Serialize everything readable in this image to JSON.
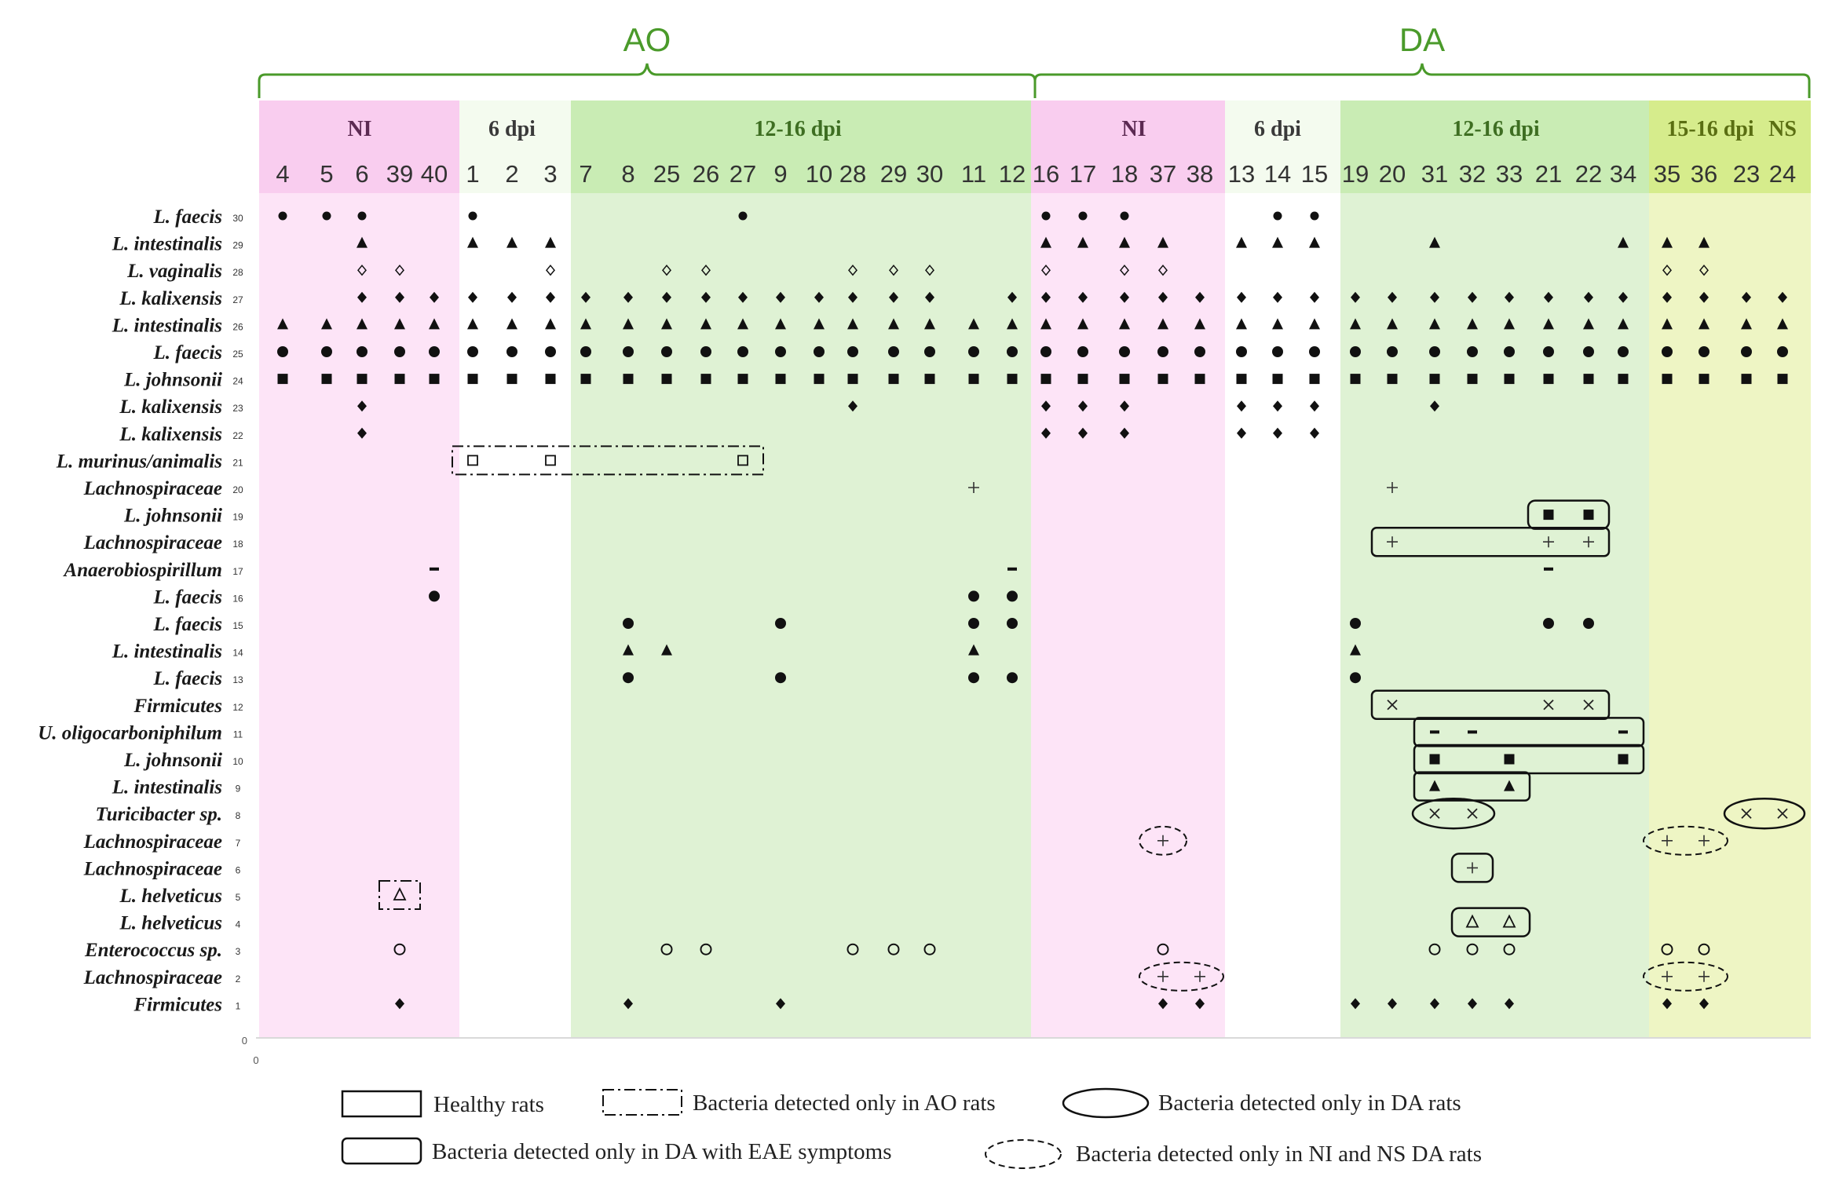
{
  "chart_data": {
    "type": "scatter",
    "groups": [
      {
        "label": "AO",
        "color": "#4a9a2a"
      },
      {
        "label": "DA",
        "color": "#4a9a2a"
      }
    ],
    "sections": [
      {
        "label": "NI",
        "fill": "#fde4f7",
        "text_color": "#5c2a52"
      },
      {
        "label": "6 dpi",
        "fill": "#ffffff",
        "text_color": "#3a3a3a"
      },
      {
        "label": "12-16 dpi",
        "fill": "#dff2d4",
        "text_color": "#3e6e22"
      },
      {
        "label": "NI",
        "fill": "#fde4f7",
        "text_color": "#5c2a52"
      },
      {
        "label": "6 dpi",
        "fill": "#ffffff",
        "text_color": "#3a3a3a"
      },
      {
        "label": "12-16 dpi",
        "fill": "#dff2d4",
        "text_color": "#3e6e22"
      },
      {
        "label": "15-16 dpi",
        "fill": "#eef5c4",
        "text_color": "#5a6e12"
      },
      {
        "label": "NS",
        "fill": "#eef5c4",
        "text_color": "#5a6e12"
      }
    ],
    "columns": [
      "4",
      "5",
      "6",
      "39",
      "40",
      "1",
      "2",
      "3",
      "7",
      "8",
      "25",
      "26",
      "27",
      "9",
      "10",
      "28",
      "29",
      "30",
      "11",
      "12",
      "16",
      "17",
      "18",
      "37",
      "38",
      "13",
      "14",
      "15",
      "19",
      "20",
      "31",
      "32",
      "33",
      "21",
      "22",
      "34",
      "35",
      "36",
      "23",
      "24"
    ],
    "rows": [
      {
        "num": "30",
        "name": "L. faecis"
      },
      {
        "num": "29",
        "name": "L. intestinalis"
      },
      {
        "num": "28",
        "name": "L. vaginalis"
      },
      {
        "num": "27",
        "name": "L. kalixensis"
      },
      {
        "num": "26",
        "name": "L. intestinalis"
      },
      {
        "num": "25",
        "name": "L. faecis"
      },
      {
        "num": "24",
        "name": "L. johnsonii"
      },
      {
        "num": "23",
        "name": "L. kalixensis"
      },
      {
        "num": "22",
        "name": "L. kalixensis"
      },
      {
        "num": "21",
        "name": "L. murinus/animalis"
      },
      {
        "num": "20",
        "name": "Lachnospiraceae"
      },
      {
        "num": "19",
        "name": "L. johnsonii"
      },
      {
        "num": "18",
        "name": "Lachnospiraceae"
      },
      {
        "num": "17",
        "name": "Anaerobiospirillum"
      },
      {
        "num": "16",
        "name": "L. faecis"
      },
      {
        "num": "15",
        "name": "L. faecis"
      },
      {
        "num": "14",
        "name": "L. intestinalis"
      },
      {
        "num": "13",
        "name": "L. faecis"
      },
      {
        "num": "12",
        "name": "Firmicutes"
      },
      {
        "num": "11",
        "name": "U. oligocarboniphilum"
      },
      {
        "num": "10",
        "name": "L. johnsonii"
      },
      {
        "num": "9",
        "name": "L. intestinalis"
      },
      {
        "num": "8",
        "name": "Turicibacter sp."
      },
      {
        "num": "7",
        "name": "Lachnospiraceae"
      },
      {
        "num": "6",
        "name": "Lachnospiraceae"
      },
      {
        "num": "5",
        "name": "L. helveticus"
      },
      {
        "num": "4",
        "name": "L. helveticus"
      },
      {
        "num": "3",
        "name": "Enterococcus sp."
      },
      {
        "num": "2",
        "name": "Lachnospiraceae"
      },
      {
        "num": "1",
        "name": "Firmicutes"
      }
    ],
    "axis": {
      "y_zero_label": "0",
      "x_zero_label": "0",
      "y_range": [
        0,
        30
      ]
    },
    "band_presence": {
      "30": {
        "marker": "circle-sm",
        "cols": [
          "4",
          "5",
          "6",
          "1",
          "27",
          "16",
          "17",
          "18",
          "14",
          "15"
        ]
      },
      "29": {
        "marker": "triangle",
        "cols": [
          "6",
          "1",
          "2",
          "3",
          "16",
          "17",
          "18",
          "37",
          "13",
          "14",
          "15",
          "31",
          "34",
          "35",
          "36"
        ]
      },
      "28": {
        "marker": "diamond-open",
        "cols": [
          "6",
          "39",
          "3",
          "25",
          "26",
          "28",
          "29",
          "30",
          "16",
          "18",
          "37",
          "35",
          "36"
        ]
      },
      "27": {
        "marker": "diamond",
        "cols": [
          "6",
          "39",
          "40",
          "1",
          "2",
          "3",
          "7",
          "8",
          "25",
          "26",
          "27",
          "9",
          "10",
          "28",
          "29",
          "30",
          "12",
          "16",
          "17",
          "18",
          "37",
          "38",
          "13",
          "14",
          "15",
          "19",
          "20",
          "31",
          "32",
          "33",
          "21",
          "22",
          "34",
          "35",
          "36",
          "23",
          "24"
        ]
      },
      "26": {
        "marker": "triangle",
        "cols": [
          "4",
          "5",
          "6",
          "39",
          "40",
          "1",
          "2",
          "3",
          "7",
          "8",
          "25",
          "26",
          "27",
          "9",
          "10",
          "28",
          "29",
          "30",
          "11",
          "12",
          "16",
          "17",
          "18",
          "37",
          "38",
          "13",
          "14",
          "15",
          "19",
          "20",
          "31",
          "32",
          "33",
          "21",
          "22",
          "34",
          "35",
          "36",
          "23",
          "24"
        ]
      },
      "25": {
        "marker": "circle",
        "cols": [
          "4",
          "5",
          "6",
          "39",
          "40",
          "1",
          "2",
          "3",
          "7",
          "8",
          "25",
          "26",
          "27",
          "9",
          "10",
          "28",
          "29",
          "30",
          "11",
          "12",
          "16",
          "17",
          "18",
          "37",
          "38",
          "13",
          "14",
          "15",
          "19",
          "20",
          "31",
          "32",
          "33",
          "21",
          "22",
          "34",
          "35",
          "36",
          "23",
          "24"
        ]
      },
      "24": {
        "marker": "square",
        "cols": [
          "4",
          "5",
          "6",
          "39",
          "40",
          "1",
          "2",
          "3",
          "7",
          "8",
          "25",
          "26",
          "27",
          "9",
          "10",
          "28",
          "29",
          "30",
          "11",
          "12",
          "16",
          "17",
          "18",
          "37",
          "38",
          "13",
          "14",
          "15",
          "19",
          "20",
          "31",
          "32",
          "33",
          "21",
          "22",
          "34",
          "35",
          "36",
          "23",
          "24"
        ]
      },
      "23": {
        "marker": "diamond",
        "cols": [
          "6",
          "28",
          "16",
          "17",
          "18",
          "13",
          "14",
          "15",
          "31"
        ]
      },
      "22": {
        "marker": "diamond",
        "cols": [
          "6",
          "16",
          "17",
          "18",
          "13",
          "14",
          "15"
        ]
      },
      "21": {
        "marker": "square-open",
        "cols": [
          "1",
          "3",
          "27"
        ]
      },
      "20": {
        "marker": "plus",
        "cols": [
          "11",
          "20"
        ]
      },
      "19": {
        "marker": "square",
        "cols": [
          "21",
          "22"
        ]
      },
      "18": {
        "marker": "plus",
        "cols": [
          "20",
          "21",
          "22"
        ]
      },
      "17": {
        "marker": "dash",
        "cols": [
          "40",
          "12",
          "21"
        ]
      },
      "16": {
        "marker": "circle",
        "cols": [
          "40",
          "11",
          "12"
        ]
      },
      "15": {
        "marker": "circle",
        "cols": [
          "8",
          "9",
          "11",
          "12",
          "19",
          "21",
          "22"
        ]
      },
      "14": {
        "marker": "triangle",
        "cols": [
          "8",
          "25",
          "11",
          "19"
        ]
      },
      "13": {
        "marker": "circle",
        "cols": [
          "8",
          "9",
          "11",
          "12",
          "19"
        ]
      },
      "12": {
        "marker": "cross",
        "cols": [
          "20",
          "21",
          "22"
        ]
      },
      "11": {
        "marker": "dash",
        "cols": [
          "31",
          "32",
          "34"
        ]
      },
      "10": {
        "marker": "square",
        "cols": [
          "31",
          "33",
          "34"
        ]
      },
      "9": {
        "marker": "triangle",
        "cols": [
          "31",
          "33"
        ]
      },
      "8": {
        "marker": "cross",
        "cols": [
          "31",
          "32",
          "23",
          "24"
        ]
      },
      "7": {
        "marker": "plus",
        "cols": [
          "37",
          "35",
          "36"
        ]
      },
      "6": {
        "marker": "plus",
        "cols": [
          "32"
        ]
      },
      "5": {
        "marker": "triangle-open",
        "cols": [
          "39"
        ]
      },
      "4": {
        "marker": "triangle-open",
        "cols": [
          "32",
          "33"
        ]
      },
      "3": {
        "marker": "circle-open",
        "cols": [
          "39",
          "25",
          "26",
          "28",
          "29",
          "30",
          "37",
          "31",
          "32",
          "33",
          "35",
          "36"
        ]
      },
      "2": {
        "marker": "plus",
        "cols": [
          "37",
          "38",
          "35",
          "36"
        ]
      },
      "1": {
        "marker": "diamond",
        "cols": [
          "39",
          "8",
          "9",
          "37",
          "38",
          "19",
          "20",
          "31",
          "32",
          "33",
          "35",
          "36"
        ]
      }
    },
    "annotations": [
      {
        "style": "dashdot-rect",
        "row": "21",
        "from": "1",
        "to": "27"
      },
      {
        "style": "dashdot-rect",
        "row": "5",
        "from": "39",
        "to": "39"
      },
      {
        "style": "rounded-rect",
        "row": "19",
        "from": "21",
        "to": "22"
      },
      {
        "style": "rect",
        "row": "18",
        "from": "20",
        "to": "22"
      },
      {
        "style": "rect",
        "row": "12",
        "from": "20",
        "to": "22"
      },
      {
        "style": "rect",
        "row": "11",
        "from": "31",
        "to": "34"
      },
      {
        "style": "rect",
        "row": "10",
        "from": "31",
        "to": "34"
      },
      {
        "style": "rect",
        "row": "9",
        "from": "31",
        "to": "33"
      },
      {
        "style": "ellipse",
        "row": "8",
        "from": "31",
        "to": "32"
      },
      {
        "style": "ellipse",
        "row": "8",
        "from": "23",
        "to": "24"
      },
      {
        "style": "dashed-ellipse",
        "row": "7",
        "from": "37",
        "to": "37"
      },
      {
        "style": "dashed-ellipse",
        "row": "7",
        "from": "35",
        "to": "36"
      },
      {
        "style": "rounded-rect",
        "row": "6",
        "from": "32",
        "to": "32"
      },
      {
        "style": "rounded-rect",
        "row": "4",
        "from": "32",
        "to": "33"
      },
      {
        "style": "dashed-ellipse",
        "row": "2",
        "from": "37",
        "to": "38"
      },
      {
        "style": "dashed-ellipse",
        "row": "2",
        "from": "35",
        "to": "36"
      }
    ],
    "legend": [
      {
        "style": "rect",
        "label": "Healthy rats"
      },
      {
        "style": "dashdot-rect",
        "label": "Bacteria  detected only in AO rats"
      },
      {
        "style": "ellipse",
        "label": "Bacteria  detected only in DA rats"
      },
      {
        "style": "rounded-rect",
        "label": "Bacteria  detected only in DA with EAE  symptoms"
      },
      {
        "style": "dashed-ellipse",
        "label": "Bacteria  detected only in NI and NS DA rats"
      }
    ]
  }
}
